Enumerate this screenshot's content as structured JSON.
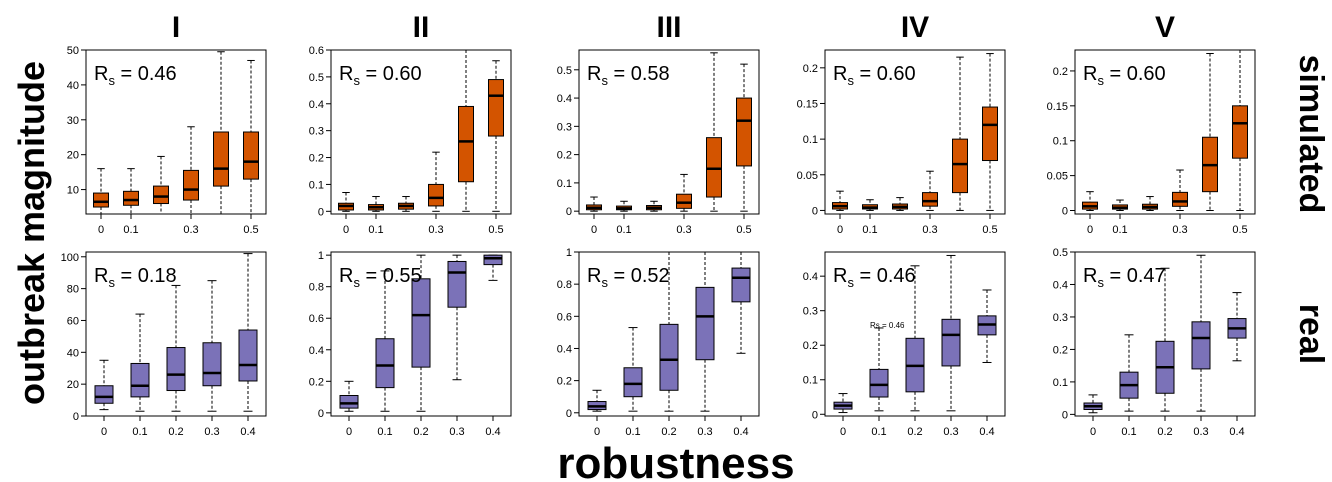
{
  "figure": {
    "ylabel": "outbreak magnitude",
    "xlabel": "robustness",
    "columns": [
      "I",
      "II",
      "III",
      "IV",
      "V"
    ],
    "rows": [
      "simulated",
      "real"
    ],
    "colors": {
      "simulated": "#d35400",
      "real": "#7b72b8"
    }
  },
  "chart_data": [
    {
      "type": "box",
      "row": "simulated",
      "column": "I",
      "annotation": "R_s = 0.46",
      "x_ticks": [
        "0",
        "0.1",
        "0.3",
        "0.5"
      ],
      "tick_indices": [
        0,
        1,
        3,
        5
      ],
      "ylim": [
        3,
        50
      ],
      "yticks": [
        10,
        20,
        30,
        40,
        50
      ],
      "boxes": [
        {
          "x": "0",
          "min": 3,
          "q1": 5,
          "median": 6.5,
          "q3": 9,
          "max": 16
        },
        {
          "x": "0.1",
          "min": 3,
          "q1": 5.5,
          "median": 7,
          "q3": 9.5,
          "max": 16
        },
        {
          "x": "0.2",
          "min": 3,
          "q1": 6,
          "median": 8,
          "q3": 11,
          "max": 19.5
        },
        {
          "x": "0.3",
          "min": 3,
          "q1": 7,
          "median": 10,
          "q3": 15.5,
          "max": 28
        },
        {
          "x": "0.4",
          "min": 3,
          "q1": 11,
          "median": 16,
          "q3": 26.5,
          "max": 49.5
        },
        {
          "x": "0.5",
          "min": 3,
          "q1": 13,
          "median": 18,
          "q3": 26.5,
          "max": 47
        }
      ]
    },
    {
      "type": "box",
      "row": "simulated",
      "column": "II",
      "annotation": "R_s = 0.60",
      "x_ticks": [
        "0",
        "0.1",
        "0.3",
        "0.5"
      ],
      "tick_indices": [
        0,
        1,
        3,
        5
      ],
      "ylim": [
        -0.01,
        0.6
      ],
      "yticks": [
        0.0,
        0.1,
        0.2,
        0.3,
        0.4,
        0.5,
        0.6
      ],
      "boxes": [
        {
          "x": "0",
          "min": 0,
          "q1": 0.005,
          "median": 0.02,
          "q3": 0.03,
          "max": 0.07
        },
        {
          "x": "0.1",
          "min": 0,
          "q1": 0.005,
          "median": 0.015,
          "q3": 0.025,
          "max": 0.055
        },
        {
          "x": "0.2",
          "min": 0,
          "q1": 0.008,
          "median": 0.02,
          "q3": 0.03,
          "max": 0.055
        },
        {
          "x": "0.3",
          "min": 0,
          "q1": 0.02,
          "median": 0.05,
          "q3": 0.1,
          "max": 0.22
        },
        {
          "x": "0.4",
          "min": 0,
          "q1": 0.11,
          "median": 0.26,
          "q3": 0.39,
          "max": 0.6
        },
        {
          "x": "0.5",
          "min": 0,
          "q1": 0.28,
          "median": 0.43,
          "q3": 0.49,
          "max": 0.56
        }
      ]
    },
    {
      "type": "box",
      "row": "simulated",
      "column": "III",
      "annotation": "R_s = 0.58",
      "x_ticks": [
        "0",
        "0.1",
        "0.3",
        "0.5"
      ],
      "tick_indices": [
        0,
        1,
        3,
        5
      ],
      "ylim": [
        -0.01,
        0.57
      ],
      "yticks": [
        0.0,
        0.1,
        0.2,
        0.3,
        0.4,
        0.5
      ],
      "boxes": [
        {
          "x": "0",
          "min": 0,
          "q1": 0.005,
          "median": 0.012,
          "q3": 0.022,
          "max": 0.05
        },
        {
          "x": "0.1",
          "min": 0,
          "q1": 0.005,
          "median": 0.01,
          "q3": 0.018,
          "max": 0.035
        },
        {
          "x": "0.2",
          "min": 0,
          "q1": 0.005,
          "median": 0.012,
          "q3": 0.02,
          "max": 0.035
        },
        {
          "x": "0.3",
          "min": 0,
          "q1": 0.01,
          "median": 0.03,
          "q3": 0.06,
          "max": 0.13
        },
        {
          "x": "0.4",
          "min": 0,
          "q1": 0.05,
          "median": 0.15,
          "q3": 0.26,
          "max": 0.56
        },
        {
          "x": "0.5",
          "min": 0,
          "q1": 0.16,
          "median": 0.32,
          "q3": 0.4,
          "max": 0.52
        }
      ]
    },
    {
      "type": "box",
      "row": "simulated",
      "column": "IV",
      "annotation": "R_s = 0.60",
      "x_ticks": [
        "0",
        "0.1",
        "0.3",
        "0.5"
      ],
      "tick_indices": [
        0,
        1,
        3,
        5
      ],
      "ylim": [
        -0.005,
        0.225
      ],
      "yticks": [
        0.0,
        0.05,
        0.1,
        0.15,
        0.2
      ],
      "boxes": [
        {
          "x": "0",
          "min": 0,
          "q1": 0.002,
          "median": 0.006,
          "q3": 0.011,
          "max": 0.027
        },
        {
          "x": "0.1",
          "min": 0,
          "q1": 0.002,
          "median": 0.004,
          "q3": 0.008,
          "max": 0.015
        },
        {
          "x": "0.2",
          "min": 0,
          "q1": 0.002,
          "median": 0.005,
          "q3": 0.009,
          "max": 0.018
        },
        {
          "x": "0.3",
          "min": 0,
          "q1": 0.006,
          "median": 0.013,
          "q3": 0.025,
          "max": 0.055
        },
        {
          "x": "0.4",
          "min": 0,
          "q1": 0.025,
          "median": 0.065,
          "q3": 0.1,
          "max": 0.215
        },
        {
          "x": "0.5",
          "min": 0,
          "q1": 0.07,
          "median": 0.12,
          "q3": 0.145,
          "max": 0.22
        }
      ]
    },
    {
      "type": "box",
      "row": "simulated",
      "column": "V",
      "annotation": "R_s = 0.60",
      "x_ticks": [
        "0",
        "0.1",
        "0.3",
        "0.5"
      ],
      "tick_indices": [
        0,
        1,
        3,
        5
      ],
      "ylim": [
        -0.005,
        0.23
      ],
      "yticks": [
        0.0,
        0.05,
        0.1,
        0.15,
        0.2
      ],
      "boxes": [
        {
          "x": "0",
          "min": 0,
          "q1": 0.002,
          "median": 0.006,
          "q3": 0.012,
          "max": 0.027
        },
        {
          "x": "0.1",
          "min": 0,
          "q1": 0.002,
          "median": 0.004,
          "q3": 0.008,
          "max": 0.015
        },
        {
          "x": "0.2",
          "min": 0,
          "q1": 0.002,
          "median": 0.005,
          "q3": 0.009,
          "max": 0.02
        },
        {
          "x": "0.3",
          "min": 0,
          "q1": 0.006,
          "median": 0.013,
          "q3": 0.026,
          "max": 0.058
        },
        {
          "x": "0.4",
          "min": 0,
          "q1": 0.027,
          "median": 0.065,
          "q3": 0.105,
          "max": 0.225
        },
        {
          "x": "0.5",
          "min": 0,
          "q1": 0.075,
          "median": 0.125,
          "q3": 0.15,
          "max": 0.23
        }
      ]
    },
    {
      "type": "box",
      "row": "real",
      "column": "I",
      "annotation": "R_s = 0.18",
      "x_ticks": [
        "0",
        "0.1",
        "0.2",
        "0.3",
        "0.4"
      ],
      "tick_indices": [
        0,
        1,
        2,
        3,
        4
      ],
      "ylim": [
        0,
        103
      ],
      "yticks": [
        0,
        20,
        40,
        60,
        80,
        100
      ],
      "boxes": [
        {
          "x": "0",
          "min": 4,
          "q1": 8,
          "median": 12,
          "q3": 19,
          "max": 35
        },
        {
          "x": "0.1",
          "min": 3,
          "q1": 12,
          "median": 19,
          "q3": 33,
          "max": 64
        },
        {
          "x": "0.2",
          "min": 3,
          "q1": 16,
          "median": 26,
          "q3": 43,
          "max": 82
        },
        {
          "x": "0.3",
          "min": 3,
          "q1": 19,
          "median": 27,
          "q3": 46,
          "max": 85
        },
        {
          "x": "0.4",
          "min": 3,
          "q1": 22,
          "median": 32,
          "q3": 54,
          "max": 102
        }
      ]
    },
    {
      "type": "box",
      "row": "real",
      "column": "II",
      "annotation": "R_s = 0.55",
      "x_ticks": [
        "0",
        "0.1",
        "0.2",
        "0.3",
        "0.4"
      ],
      "tick_indices": [
        0,
        1,
        2,
        3,
        4
      ],
      "ylim": [
        -0.02,
        1.02
      ],
      "yticks": [
        0.0,
        0.2,
        0.4,
        0.6,
        0.8,
        1.0
      ],
      "boxes": [
        {
          "x": "0",
          "min": 0.01,
          "q1": 0.03,
          "median": 0.06,
          "q3": 0.11,
          "max": 0.2
        },
        {
          "x": "0.1",
          "min": 0.01,
          "q1": 0.16,
          "median": 0.3,
          "q3": 0.47,
          "max": 0.9
        },
        {
          "x": "0.2",
          "min": 0.01,
          "q1": 0.29,
          "median": 0.62,
          "q3": 0.85,
          "max": 1.0
        },
        {
          "x": "0.3",
          "min": 0.21,
          "q1": 0.67,
          "median": 0.89,
          "q3": 0.96,
          "max": 1.0
        },
        {
          "x": "0.4",
          "min": 0.84,
          "q1": 0.94,
          "median": 0.98,
          "q3": 1.0,
          "max": 1.0
        }
      ]
    },
    {
      "type": "box",
      "row": "real",
      "column": "III",
      "annotation": "R_s = 0.52",
      "x_ticks": [
        "0",
        "0.1",
        "0.2",
        "0.3",
        "0.4"
      ],
      "tick_indices": [
        0,
        1,
        2,
        3,
        4
      ],
      "ylim": [
        -0.02,
        1.0
      ],
      "yticks": [
        0.0,
        0.2,
        0.4,
        0.6,
        0.8,
        1.0
      ],
      "boxes": [
        {
          "x": "0",
          "min": 0.01,
          "q1": 0.02,
          "median": 0.04,
          "q3": 0.07,
          "max": 0.14
        },
        {
          "x": "0.1",
          "min": 0.01,
          "q1": 0.1,
          "median": 0.18,
          "q3": 0.28,
          "max": 0.53
        },
        {
          "x": "0.2",
          "min": 0.01,
          "q1": 0.14,
          "median": 0.33,
          "q3": 0.55,
          "max": 1.0
        },
        {
          "x": "0.3",
          "min": 0.01,
          "q1": 0.33,
          "median": 0.6,
          "q3": 0.78,
          "max": 1.0
        },
        {
          "x": "0.4",
          "min": 0.37,
          "q1": 0.69,
          "median": 0.84,
          "q3": 0.9,
          "max": 1.0
        }
      ]
    },
    {
      "type": "box",
      "row": "real",
      "column": "IV",
      "annotation": "R_s = 0.46",
      "inset_note": "Rs = 0.46",
      "x_ticks": [
        "0",
        "0.1",
        "0.2",
        "0.3",
        "0.4"
      ],
      "tick_indices": [
        0,
        1,
        2,
        3,
        4
      ],
      "ylim": [
        -0.005,
        0.47
      ],
      "yticks": [
        0.0,
        0.1,
        0.2,
        0.3,
        0.4
      ],
      "boxes": [
        {
          "x": "0",
          "min": 0.005,
          "q1": 0.015,
          "median": 0.025,
          "q3": 0.035,
          "max": 0.06
        },
        {
          "x": "0.1",
          "min": 0.01,
          "q1": 0.05,
          "median": 0.085,
          "q3": 0.13,
          "max": 0.25
        },
        {
          "x": "0.2",
          "min": 0.01,
          "q1": 0.065,
          "median": 0.14,
          "q3": 0.22,
          "max": 0.43
        },
        {
          "x": "0.3",
          "min": 0.01,
          "q1": 0.14,
          "median": 0.23,
          "q3": 0.275,
          "max": 0.46
        },
        {
          "x": "0.4",
          "min": 0.15,
          "q1": 0.23,
          "median": 0.26,
          "q3": 0.285,
          "max": 0.36
        }
      ]
    },
    {
      "type": "box",
      "row": "real",
      "column": "V",
      "annotation": "R_s = 0.47",
      "x_ticks": [
        "0",
        "0.1",
        "0.2",
        "0.3",
        "0.4"
      ],
      "tick_indices": [
        0,
        1,
        2,
        3,
        4
      ],
      "ylim": [
        -0.005,
        0.5
      ],
      "yticks": [
        0.0,
        0.1,
        0.2,
        0.3,
        0.4,
        0.5
      ],
      "boxes": [
        {
          "x": "0",
          "min": 0.005,
          "q1": 0.015,
          "median": 0.025,
          "q3": 0.035,
          "max": 0.06
        },
        {
          "x": "0.1",
          "min": 0.01,
          "q1": 0.05,
          "median": 0.09,
          "q3": 0.13,
          "max": 0.245
        },
        {
          "x": "0.2",
          "min": 0.01,
          "q1": 0.065,
          "median": 0.145,
          "q3": 0.225,
          "max": 0.45
        },
        {
          "x": "0.3",
          "min": 0.01,
          "q1": 0.14,
          "median": 0.235,
          "q3": 0.285,
          "max": 0.49
        },
        {
          "x": "0.4",
          "min": 0.165,
          "q1": 0.235,
          "median": 0.265,
          "q3": 0.295,
          "max": 0.375
        }
      ]
    }
  ]
}
